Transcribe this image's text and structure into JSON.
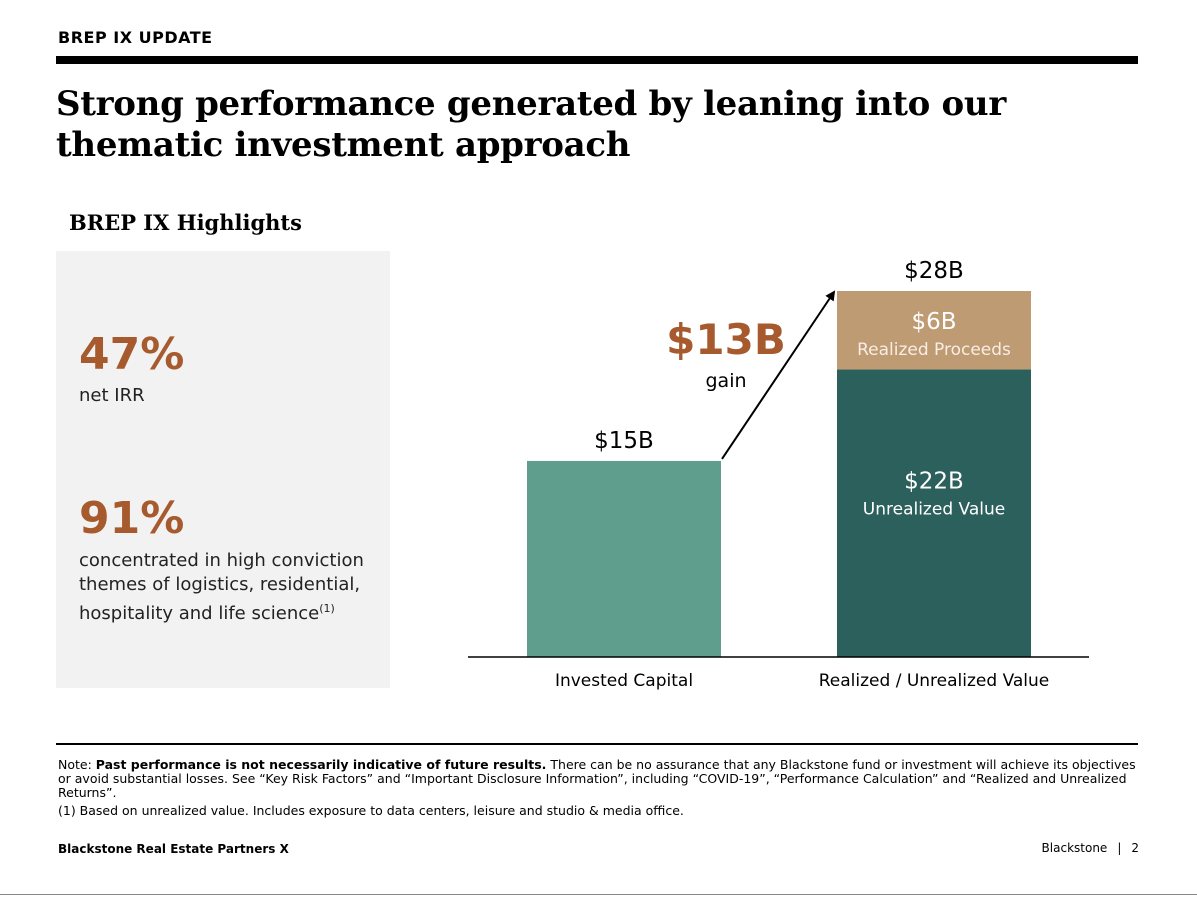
{
  "header": {
    "eyebrow": "BREP IX UPDATE",
    "title": "Strong performance generated by leaning into our thematic investment approach"
  },
  "highlights": {
    "heading": "BREP IX Highlights",
    "stats": [
      {
        "value": "47%",
        "text": "net IRR"
      },
      {
        "value": "91%",
        "text_lines": [
          "concentrated in high conviction",
          "themes of logistics, residential,",
          "hospitality and life science"
        ],
        "footnote_ref": "(1)"
      }
    ],
    "accent_color": "#a65a2e"
  },
  "chart_data": {
    "type": "bar",
    "categories": [
      "Invested Capital",
      "Realized / Unrealized Value"
    ],
    "series": [
      {
        "name": "",
        "values": [
          15,
          0
        ],
        "color": "#5f9e8c"
      },
      {
        "name": "Unrealized Value",
        "values": [
          0,
          22
        ],
        "color": "#2c605c"
      },
      {
        "name": "Realized Proceeds",
        "values": [
          0,
          6
        ],
        "color": "#bf9b74"
      }
    ],
    "unit": "$B",
    "totals": [
      {
        "category": "Invested Capital",
        "label": "$15B"
      },
      {
        "category": "Realized / Unrealized Value",
        "label": "$28B"
      }
    ],
    "segment_labels": [
      {
        "value_label": "$6B",
        "name_label": "Realized Proceeds"
      },
      {
        "value_label": "$22B",
        "name_label": "Unrealized Value"
      }
    ],
    "annotation": {
      "value": "$13B",
      "text": "gain",
      "color": "#a65a2e"
    },
    "ylim": [
      0,
      28
    ],
    "stacked": true,
    "grid": false,
    "legend": "none"
  },
  "note": {
    "prefix": "Note: ",
    "bold": "Past performance is not necessarily indicative of future results.",
    "text": " There can be no assurance that any Blackstone fund or investment will achieve its objectives or avoid substantial losses. See “Key Risk Factors” and “Important Disclosure Information”, including “COVID-19”, “Performance Calculation” and “Realized and Unrealized Returns”.",
    "footnote": "(1)  Based on unrealized value. Includes exposure to data centers, leisure and studio & media office."
  },
  "footer": {
    "fund": "Blackstone Real Estate Partners X",
    "brand": "Blackstone",
    "separator": "|",
    "page": "2"
  }
}
